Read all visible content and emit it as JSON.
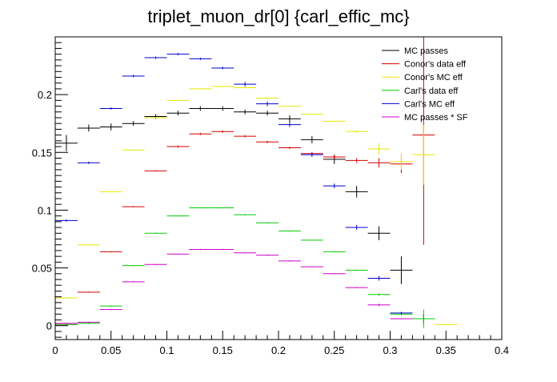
{
  "chart_data": {
    "type": "scatter",
    "title": "triplet_muon_dr[0]  {carl_effic_mc}",
    "xlabel": "",
    "ylabel": "",
    "xlim": [
      0,
      0.4
    ],
    "ylim": [
      -0.012,
      0.25
    ],
    "grid": false,
    "legend_position": "top-right",
    "x_ticks": [
      "0",
      "0.05",
      "0.1",
      "0.15",
      "0.2",
      "0.25",
      "0.3",
      "0.35",
      "0.4"
    ],
    "x_tick_values": [
      0,
      0.05,
      0.1,
      0.15,
      0.2,
      0.25,
      0.3,
      0.35,
      0.4
    ],
    "y_ticks": [
      "0",
      "0.05",
      "0.1",
      "0.15",
      "0.2"
    ],
    "y_tick_values": [
      0,
      0.05,
      0.1,
      0.15,
      0.2
    ],
    "bin_half_width": 0.01,
    "series": [
      {
        "name": "MC passes",
        "color": "#000000",
        "points": [
          {
            "x": 0.01,
            "y": 0.158,
            "ye": 0.007
          },
          {
            "x": 0.03,
            "y": 0.171,
            "ye": 0.003
          },
          {
            "x": 0.05,
            "y": 0.172,
            "ye": 0.003
          },
          {
            "x": 0.07,
            "y": 0.175,
            "ye": 0.002
          },
          {
            "x": 0.09,
            "y": 0.181,
            "ye": 0.002
          },
          {
            "x": 0.11,
            "y": 0.184,
            "ye": 0.002
          },
          {
            "x": 0.13,
            "y": 0.188,
            "ye": 0.002
          },
          {
            "x": 0.15,
            "y": 0.188,
            "ye": 0.002
          },
          {
            "x": 0.17,
            "y": 0.185,
            "ye": 0.002
          },
          {
            "x": 0.19,
            "y": 0.184,
            "ye": 0.002
          },
          {
            "x": 0.21,
            "y": 0.179,
            "ye": 0.003
          },
          {
            "x": 0.23,
            "y": 0.161,
            "ye": 0.003
          },
          {
            "x": 0.25,
            "y": 0.144,
            "ye": 0.004
          },
          {
            "x": 0.27,
            "y": 0.116,
            "ye": 0.005
          },
          {
            "x": 0.29,
            "y": 0.08,
            "ye": 0.006
          },
          {
            "x": 0.31,
            "y": 0.048,
            "ye": 0.012
          },
          {
            "x": 0.33,
            "y": 0.006,
            "ye": 0.004
          }
        ]
      },
      {
        "name": "Conor's data eff",
        "color": "#d40000",
        "points": [
          {
            "x": 0.01,
            "y": 0.001,
            "ye": 0.0005
          },
          {
            "x": 0.03,
            "y": 0.029,
            "ye": 0.0005
          },
          {
            "x": 0.05,
            "y": 0.064,
            "ye": 0.0005
          },
          {
            "x": 0.07,
            "y": 0.103,
            "ye": 0.0005
          },
          {
            "x": 0.09,
            "y": 0.134,
            "ye": 0.0005
          },
          {
            "x": 0.11,
            "y": 0.155,
            "ye": 0.001
          },
          {
            "x": 0.13,
            "y": 0.166,
            "ye": 0.001
          },
          {
            "x": 0.15,
            "y": 0.168,
            "ye": 0.001
          },
          {
            "x": 0.17,
            "y": 0.164,
            "ye": 0.001
          },
          {
            "x": 0.19,
            "y": 0.159,
            "ye": 0.001
          },
          {
            "x": 0.21,
            "y": 0.154,
            "ye": 0.001
          },
          {
            "x": 0.23,
            "y": 0.149,
            "ye": 0.001
          },
          {
            "x": 0.25,
            "y": 0.146,
            "ye": 0.002
          },
          {
            "x": 0.27,
            "y": 0.143,
            "ye": 0.002
          },
          {
            "x": 0.29,
            "y": 0.141,
            "ye": 0.004
          },
          {
            "x": 0.31,
            "y": 0.14,
            "ye": 0.008
          },
          {
            "x": 0.33,
            "y": 0.165,
            "ye": 0.095
          }
        ]
      },
      {
        "name": "Conor's MC eff",
        "color": "#e6e600",
        "points": [
          {
            "x": 0.01,
            "y": 0.024,
            "ye": 0.0005
          },
          {
            "x": 0.03,
            "y": 0.07,
            "ye": 0.0005
          },
          {
            "x": 0.05,
            "y": 0.116,
            "ye": 0.0005
          },
          {
            "x": 0.07,
            "y": 0.152,
            "ye": 0.0005
          },
          {
            "x": 0.09,
            "y": 0.18,
            "ye": 0.0005
          },
          {
            "x": 0.11,
            "y": 0.195,
            "ye": 0.0005
          },
          {
            "x": 0.13,
            "y": 0.205,
            "ye": 0.0005
          },
          {
            "x": 0.15,
            "y": 0.207,
            "ye": 0.0005
          },
          {
            "x": 0.17,
            "y": 0.206,
            "ye": 0.0005
          },
          {
            "x": 0.19,
            "y": 0.197,
            "ye": 0.0005
          },
          {
            "x": 0.21,
            "y": 0.19,
            "ye": 0.0005
          },
          {
            "x": 0.23,
            "y": 0.183,
            "ye": 0.0005
          },
          {
            "x": 0.25,
            "y": 0.177,
            "ye": 0.0005
          },
          {
            "x": 0.27,
            "y": 0.168,
            "ye": 0.001
          },
          {
            "x": 0.29,
            "y": 0.153,
            "ye": 0.005
          },
          {
            "x": 0.31,
            "y": 0.142,
            "ye": 0.007
          },
          {
            "x": 0.33,
            "y": 0.148,
            "ye": 0.026
          },
          {
            "x": 0.35,
            "y": 0.001,
            "ye": 0.0005
          }
        ]
      },
      {
        "name": "Carl's data eff",
        "color": "#00cc00",
        "points": [
          {
            "x": 0.01,
            "y": 0.001,
            "ye": 0.0005
          },
          {
            "x": 0.03,
            "y": 0.002,
            "ye": 0.0005
          },
          {
            "x": 0.05,
            "y": 0.017,
            "ye": 0.0005
          },
          {
            "x": 0.07,
            "y": 0.052,
            "ye": 0.0005
          },
          {
            "x": 0.09,
            "y": 0.08,
            "ye": 0.0005
          },
          {
            "x": 0.11,
            "y": 0.095,
            "ye": 0.0005
          },
          {
            "x": 0.13,
            "y": 0.102,
            "ye": 0.0005
          },
          {
            "x": 0.15,
            "y": 0.102,
            "ye": 0.0005
          },
          {
            "x": 0.17,
            "y": 0.096,
            "ye": 0.0005
          },
          {
            "x": 0.19,
            "y": 0.089,
            "ye": 0.0005
          },
          {
            "x": 0.21,
            "y": 0.082,
            "ye": 0.0005
          },
          {
            "x": 0.23,
            "y": 0.074,
            "ye": 0.0005
          },
          {
            "x": 0.25,
            "y": 0.064,
            "ye": 0.0005
          },
          {
            "x": 0.27,
            "y": 0.048,
            "ye": 0.0005
          },
          {
            "x": 0.29,
            "y": 0.027,
            "ye": 0.001
          },
          {
            "x": 0.31,
            "y": 0.01,
            "ye": 0.001
          },
          {
            "x": 0.33,
            "y": 0.006,
            "ye": 0.008
          }
        ]
      },
      {
        "name": "Carl's MC eff",
        "color": "#0000cc",
        "points": [
          {
            "x": 0.01,
            "y": 0.091,
            "ye": 0.001
          },
          {
            "x": 0.03,
            "y": 0.141,
            "ye": 0.001
          },
          {
            "x": 0.05,
            "y": 0.188,
            "ye": 0.001
          },
          {
            "x": 0.07,
            "y": 0.216,
            "ye": 0.001
          },
          {
            "x": 0.09,
            "y": 0.232,
            "ye": 0.001
          },
          {
            "x": 0.11,
            "y": 0.235,
            "ye": 0.001
          },
          {
            "x": 0.13,
            "y": 0.231,
            "ye": 0.001
          },
          {
            "x": 0.15,
            "y": 0.223,
            "ye": 0.001
          },
          {
            "x": 0.17,
            "y": 0.209,
            "ye": 0.002
          },
          {
            "x": 0.19,
            "y": 0.192,
            "ye": 0.002
          },
          {
            "x": 0.21,
            "y": 0.174,
            "ye": 0.002
          },
          {
            "x": 0.23,
            "y": 0.148,
            "ye": 0.002
          },
          {
            "x": 0.25,
            "y": 0.121,
            "ye": 0.002
          },
          {
            "x": 0.27,
            "y": 0.085,
            "ye": 0.002
          },
          {
            "x": 0.29,
            "y": 0.041,
            "ye": 0.002
          },
          {
            "x": 0.31,
            "y": 0.011,
            "ye": 0.001
          }
        ]
      },
      {
        "name": "MC passes * SF",
        "color": "#cc00cc",
        "points": [
          {
            "x": 0.01,
            "y": 0.002,
            "ye": 0.0005
          },
          {
            "x": 0.03,
            "y": 0.003,
            "ye": 0.0005
          },
          {
            "x": 0.05,
            "y": 0.014,
            "ye": 0.0005
          },
          {
            "x": 0.07,
            "y": 0.038,
            "ye": 0.0005
          },
          {
            "x": 0.09,
            "y": 0.053,
            "ye": 0.0005
          },
          {
            "x": 0.11,
            "y": 0.062,
            "ye": 0.0005
          },
          {
            "x": 0.13,
            "y": 0.066,
            "ye": 0.0005
          },
          {
            "x": 0.15,
            "y": 0.066,
            "ye": 0.0005
          },
          {
            "x": 0.17,
            "y": 0.063,
            "ye": 0.0005
          },
          {
            "x": 0.19,
            "y": 0.061,
            "ye": 0.0005
          },
          {
            "x": 0.21,
            "y": 0.056,
            "ye": 0.0005
          },
          {
            "x": 0.23,
            "y": 0.051,
            "ye": 0.0005
          },
          {
            "x": 0.25,
            "y": 0.045,
            "ye": 0.0005
          },
          {
            "x": 0.27,
            "y": 0.033,
            "ye": 0.0005
          },
          {
            "x": 0.29,
            "y": 0.018,
            "ye": 0.001
          },
          {
            "x": 0.31,
            "y": 0.006,
            "ye": 0.0005
          }
        ]
      }
    ]
  }
}
